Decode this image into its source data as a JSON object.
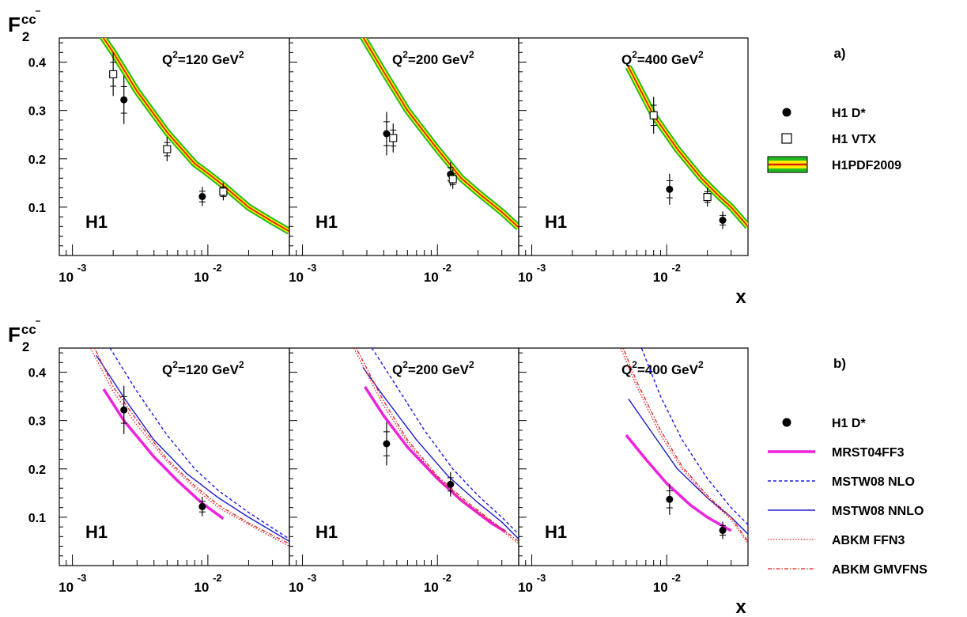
{
  "figure": {
    "ylabel": {
      "base": "F",
      "sub": "2",
      "sup": "cc"
    },
    "xlabel": "x",
    "tick_exp": "-3",
    "tick_exp2": "-2",
    "tick_base": "10",
    "experiment": "H1",
    "q2_labels": [
      "Q2=120 GeV2",
      "Q2=200 GeV2",
      "Q2=400 GeV2"
    ],
    "q2_prefix": "Q",
    "q2_unit": "=",
    "q2_values": [
      "120",
      "200",
      "400"
    ],
    "q2_gev": " GeV"
  },
  "colors": {
    "band_outer": "#22bb22",
    "band_inner": "#ffee00",
    "band_center": "#dd2200",
    "mrst": "#ee22dd",
    "mstw_nlo": "#1a1aee",
    "mstw_nnlo": "#1a1acc",
    "abkm": "#dd2222"
  },
  "chart_data": [
    {
      "type": "scatter",
      "panel_label": "a)",
      "xscale": "log",
      "xlim": [
        0.0008,
        0.04
      ],
      "ylim": [
        0.0,
        0.45
      ],
      "yticks": [
        0.1,
        0.2,
        0.3,
        0.4
      ],
      "legend": {
        "position": "right",
        "entries": [
          "H1 D*",
          "H1 VTX",
          "H1PDF2009"
        ]
      },
      "q2": [
        120,
        200,
        400
      ],
      "series": [
        {
          "name": "H1 D*",
          "marker": "filled-circle",
          "points_by_q2": [
            [
              {
                "x": 0.0024,
                "y": 0.322,
                "err": 0.05
              },
              {
                "x": 0.0091,
                "y": 0.122,
                "err": 0.02
              }
            ],
            [
              {
                "x": 0.0042,
                "y": 0.252,
                "err": 0.045
              },
              {
                "x": 0.0125,
                "y": 0.168,
                "err": 0.025
              }
            ],
            [
              {
                "x": 0.0105,
                "y": 0.137,
                "err": 0.032
              },
              {
                "x": 0.026,
                "y": 0.073,
                "err": 0.018
              }
            ]
          ]
        },
        {
          "name": "H1 VTX",
          "marker": "open-square",
          "points_by_q2": [
            [
              {
                "x": 0.002,
                "y": 0.375,
                "err": 0.045
              },
              {
                "x": 0.005,
                "y": 0.22,
                "err": 0.025
              },
              {
                "x": 0.013,
                "y": 0.132,
                "err": 0.018
              }
            ],
            [
              {
                "x": 0.0047,
                "y": 0.243,
                "err": 0.03
              },
              {
                "x": 0.013,
                "y": 0.158,
                "err": 0.02
              }
            ],
            [
              {
                "x": 0.008,
                "y": 0.29,
                "err": 0.038
              },
              {
                "x": 0.02,
                "y": 0.121,
                "err": 0.02
              }
            ]
          ]
        },
        {
          "name": "H1PDF2009",
          "style": "band",
          "curves_by_q2": [
            [
              [
                0.0016,
                0.46
              ],
              [
                0.002,
                0.42
              ],
              [
                0.003,
                0.34
              ],
              [
                0.005,
                0.255
              ],
              [
                0.008,
                0.19
              ],
              [
                0.01,
                0.17
              ],
              [
                0.013,
                0.145
              ],
              [
                0.02,
                0.1
              ],
              [
                0.03,
                0.07
              ],
              [
                0.04,
                0.05
              ]
            ],
            [
              [
                0.0027,
                0.46
              ],
              [
                0.004,
                0.38
              ],
              [
                0.006,
                0.3
              ],
              [
                0.01,
                0.22
              ],
              [
                0.015,
                0.16
              ],
              [
                0.02,
                0.13
              ],
              [
                0.03,
                0.09
              ],
              [
                0.04,
                0.058
              ]
            ],
            [
              [
                0.0052,
                0.39
              ],
              [
                0.008,
                0.29
              ],
              [
                0.012,
                0.22
              ],
              [
                0.018,
                0.16
              ],
              [
                0.025,
                0.12
              ],
              [
                0.03,
                0.1
              ],
              [
                0.04,
                0.06
              ]
            ]
          ]
        }
      ]
    },
    {
      "type": "line",
      "panel_label": "b)",
      "xscale": "log",
      "xlim": [
        0.0008,
        0.04
      ],
      "ylim": [
        0.0,
        0.45
      ],
      "yticks": [
        0.1,
        0.2,
        0.3,
        0.4
      ],
      "legend": {
        "position": "right",
        "entries": [
          "H1 D*",
          "MRST04FF3",
          "MSTW08 NLO",
          "MSTW08 NNLO",
          "ABKM FFN3",
          "ABKM GMVFNS"
        ]
      },
      "q2": [
        120,
        200,
        400
      ],
      "series": [
        {
          "name": "H1 D*",
          "marker": "filled-circle",
          "points_by_q2": [
            [
              {
                "x": 0.0024,
                "y": 0.322,
                "err": 0.05
              },
              {
                "x": 0.0091,
                "y": 0.122,
                "err": 0.02
              }
            ],
            [
              {
                "x": 0.0042,
                "y": 0.252,
                "err": 0.045
              },
              {
                "x": 0.0125,
                "y": 0.168,
                "err": 0.025
              }
            ],
            [
              {
                "x": 0.0105,
                "y": 0.137,
                "err": 0.032
              },
              {
                "x": 0.026,
                "y": 0.073,
                "err": 0.018
              }
            ]
          ]
        },
        {
          "name": "MRST04FF3",
          "style": "thick-solid",
          "curves_by_q2": [
            [
              [
                0.0017,
                0.365
              ],
              [
                0.0024,
                0.3
              ],
              [
                0.004,
                0.225
              ],
              [
                0.006,
                0.175
              ],
              [
                0.009,
                0.13
              ],
              [
                0.013,
                0.097
              ]
            ],
            [
              [
                0.0029,
                0.37
              ],
              [
                0.004,
                0.31
              ],
              [
                0.006,
                0.245
              ],
              [
                0.01,
                0.18
              ],
              [
                0.015,
                0.135
              ],
              [
                0.025,
                0.088
              ],
              [
                0.032,
                0.07
              ]
            ],
            [
              [
                0.005,
                0.27
              ],
              [
                0.007,
                0.22
              ],
              [
                0.01,
                0.17
              ],
              [
                0.015,
                0.125
              ],
              [
                0.02,
                0.1
              ],
              [
                0.03,
                0.072
              ]
            ]
          ]
        },
        {
          "name": "MSTW08 NLO",
          "style": "dashed",
          "curves_by_q2": [
            [
              [
                0.0018,
                0.46
              ],
              [
                0.003,
                0.36
              ],
              [
                0.005,
                0.27
              ],
              [
                0.008,
                0.2
              ],
              [
                0.012,
                0.155
              ],
              [
                0.02,
                0.11
              ],
              [
                0.04,
                0.055
              ]
            ],
            [
              [
                0.0031,
                0.46
              ],
              [
                0.005,
                0.37
              ],
              [
                0.008,
                0.28
              ],
              [
                0.013,
                0.2
              ],
              [
                0.02,
                0.145
              ],
              [
                0.03,
                0.1
              ],
              [
                0.04,
                0.065
              ]
            ],
            [
              [
                0.0063,
                0.46
              ],
              [
                0.009,
                0.35
              ],
              [
                0.013,
                0.26
              ],
              [
                0.02,
                0.18
              ],
              [
                0.03,
                0.12
              ],
              [
                0.04,
                0.085
              ]
            ]
          ]
        },
        {
          "name": "MSTW08 NNLO",
          "style": "solid",
          "curves_by_q2": [
            [
              [
                0.0015,
                0.435
              ],
              [
                0.0025,
                0.34
              ],
              [
                0.004,
                0.26
              ],
              [
                0.007,
                0.19
              ],
              [
                0.012,
                0.14
              ],
              [
                0.02,
                0.1
              ],
              [
                0.04,
                0.05
              ]
            ],
            [
              [
                0.0028,
                0.41
              ],
              [
                0.004,
                0.35
              ],
              [
                0.007,
                0.26
              ],
              [
                0.012,
                0.185
              ],
              [
                0.02,
                0.13
              ],
              [
                0.03,
                0.09
              ],
              [
                0.04,
                0.055
              ]
            ],
            [
              [
                0.0052,
                0.345
              ],
              [
                0.008,
                0.27
              ],
              [
                0.012,
                0.2
              ],
              [
                0.02,
                0.14
              ],
              [
                0.03,
                0.1
              ],
              [
                0.04,
                0.065
              ]
            ]
          ]
        },
        {
          "name": "ABKM FFN3",
          "style": "dotted",
          "curves_by_q2": [
            [
              [
                0.0013,
                0.46
              ],
              [
                0.002,
                0.36
              ],
              [
                0.003,
                0.29
              ],
              [
                0.005,
                0.215
              ],
              [
                0.008,
                0.16
              ],
              [
                0.012,
                0.12
              ],
              [
                0.02,
                0.085
              ],
              [
                0.04,
                0.04
              ]
            ],
            [
              [
                0.0023,
                0.46
              ],
              [
                0.004,
                0.33
              ],
              [
                0.006,
                0.255
              ],
              [
                0.01,
                0.18
              ],
              [
                0.016,
                0.13
              ],
              [
                0.025,
                0.09
              ],
              [
                0.04,
                0.045
              ]
            ],
            [
              [
                0.0044,
                0.46
              ],
              [
                0.006,
                0.37
              ],
              [
                0.009,
                0.27
              ],
              [
                0.013,
                0.2
              ],
              [
                0.02,
                0.14
              ],
              [
                0.03,
                0.095
              ],
              [
                0.04,
                0.045
              ]
            ]
          ]
        },
        {
          "name": "ABKM GMVFNS",
          "style": "dash-dot",
          "curves_by_q2": [
            [
              [
                0.0014,
                0.46
              ],
              [
                0.002,
                0.37
              ],
              [
                0.003,
                0.3
              ],
              [
                0.005,
                0.22
              ],
              [
                0.008,
                0.165
              ],
              [
                0.012,
                0.125
              ],
              [
                0.02,
                0.088
              ],
              [
                0.04,
                0.045
              ]
            ],
            [
              [
                0.0024,
                0.46
              ],
              [
                0.004,
                0.34
              ],
              [
                0.006,
                0.26
              ],
              [
                0.01,
                0.185
              ],
              [
                0.016,
                0.135
              ],
              [
                0.025,
                0.093
              ],
              [
                0.04,
                0.05
              ]
            ],
            [
              [
                0.0046,
                0.46
              ],
              [
                0.006,
                0.38
              ],
              [
                0.009,
                0.28
              ],
              [
                0.013,
                0.205
              ],
              [
                0.02,
                0.145
              ],
              [
                0.03,
                0.1
              ],
              [
                0.04,
                0.05
              ]
            ]
          ]
        }
      ]
    }
  ]
}
